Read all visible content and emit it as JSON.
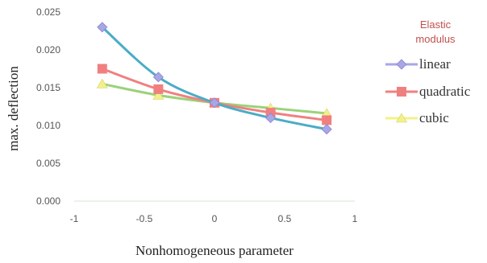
{
  "chart_data": {
    "type": "line",
    "xlabel": "Nonhomogeneous parameter",
    "ylabel": "max. deflection",
    "xlim": [
      -1,
      1
    ],
    "ylim": [
      0,
      0.025
    ],
    "x_ticks": [
      "-1",
      "-0.5",
      "0",
      "0.5",
      "1"
    ],
    "y_ticks": [
      "0.000",
      "0.005",
      "0.010",
      "0.015",
      "0.020",
      "0.025"
    ],
    "grid": false,
    "smooth": true,
    "legend": {
      "title_lines": [
        "Elastic",
        "modulus"
      ],
      "placement": "right"
    },
    "x": [
      -0.8,
      -0.4,
      0,
      0.4,
      0.8
    ],
    "series": [
      {
        "name": "linear",
        "values": [
          0.023,
          0.0164,
          0.013,
          0.011,
          0.0095
        ],
        "color": "#4bacc6",
        "marker_color": "#a9a6e6",
        "marker": "diamond"
      },
      {
        "name": "quadratic",
        "values": [
          0.0175,
          0.0148,
          0.013,
          0.0117,
          0.0107
        ],
        "color": "#f08080",
        "marker_color": "#f08080",
        "marker": "square"
      },
      {
        "name": "cubic",
        "values": [
          0.0155,
          0.014,
          0.013,
          0.0123,
          0.0116
        ],
        "color": "#9bd27a",
        "marker_color": "#f2f08a",
        "marker": "triangle"
      }
    ]
  }
}
